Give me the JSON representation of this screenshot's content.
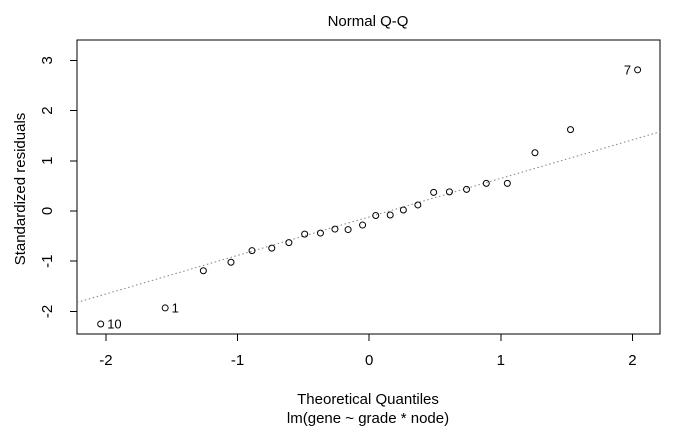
{
  "chart_data": {
    "type": "scatter",
    "title": "Normal Q-Q",
    "xlabel": "Theoretical Quantiles",
    "x_sublabel": "lm(gene ~ grade * node)",
    "ylabel": "Standardized residuals",
    "xlim": [
      -2.22,
      2.21
    ],
    "ylim": [
      -2.449,
      3.404
    ],
    "x_ticks": [
      -2,
      -1,
      0,
      1,
      2
    ],
    "y_ticks": [
      -2,
      -1,
      0,
      1,
      2,
      3
    ],
    "grid": false,
    "marker": {
      "shape": "open-circle",
      "radius": 3,
      "color": "#000000"
    },
    "reference_line": {
      "style": "dotted",
      "slope": 0.767,
      "intercept": -0.118,
      "color": "#828282"
    },
    "points": [
      {
        "x": -2.04,
        "y": -2.25,
        "label": "10",
        "label_side": "right"
      },
      {
        "x": -1.55,
        "y": -1.93,
        "label": "1",
        "label_side": "right"
      },
      {
        "x": -1.26,
        "y": -1.19
      },
      {
        "x": -1.05,
        "y": -1.02
      },
      {
        "x": -0.89,
        "y": -0.79
      },
      {
        "x": -0.74,
        "y": -0.74
      },
      {
        "x": -0.61,
        "y": -0.63
      },
      {
        "x": -0.49,
        "y": -0.46
      },
      {
        "x": -0.37,
        "y": -0.44
      },
      {
        "x": -0.26,
        "y": -0.36
      },
      {
        "x": -0.16,
        "y": -0.37
      },
      {
        "x": -0.05,
        "y": -0.28
      },
      {
        "x": 0.05,
        "y": -0.09
      },
      {
        "x": 0.16,
        "y": -0.08
      },
      {
        "x": 0.26,
        "y": 0.02
      },
      {
        "x": 0.37,
        "y": 0.12
      },
      {
        "x": 0.49,
        "y": 0.37
      },
      {
        "x": 0.61,
        "y": 0.38
      },
      {
        "x": 0.74,
        "y": 0.43
      },
      {
        "x": 0.89,
        "y": 0.55
      },
      {
        "x": 1.05,
        "y": 0.55
      },
      {
        "x": 1.26,
        "y": 1.16
      },
      {
        "x": 1.53,
        "y": 1.62
      },
      {
        "x": 2.04,
        "y": 2.81,
        "label": "7",
        "label_side": "left"
      }
    ]
  }
}
